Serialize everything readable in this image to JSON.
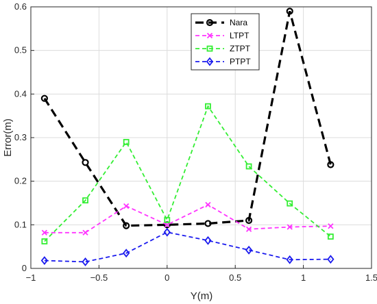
{
  "chart_data": {
    "type": "line",
    "xlabel": "Y(m)",
    "ylabel": "Error(m)",
    "xlim": [
      -1,
      1.5
    ],
    "ylim": [
      0,
      0.6
    ],
    "xticks": [
      -1,
      -0.5,
      0,
      0.5,
      1,
      1.5
    ],
    "xtick_labels": [
      "−1",
      "−0.5",
      "0",
      "0.5",
      "1",
      "1.5"
    ],
    "yticks": [
      0,
      0.1,
      0.2,
      0.3,
      0.4,
      0.5,
      0.6
    ],
    "ytick_labels": [
      "0",
      "0.1",
      "0.2",
      "0.3",
      "0.4",
      "0.5",
      "0.6"
    ],
    "grid": true,
    "legend_position": "top-center",
    "series": [
      {
        "name": "Nara",
        "color": "#000000",
        "marker": "circle",
        "dash": "long-dash",
        "x": [
          -0.9,
          -0.6,
          -0.3,
          0,
          0.3,
          0.6,
          0.9,
          1.2
        ],
        "y": [
          0.39,
          0.243,
          0.098,
          0.1,
          0.103,
          0.11,
          0.59,
          0.238
        ]
      },
      {
        "name": "LTPT",
        "color": "#ff33ff",
        "marker": "x",
        "dash": "dashed",
        "x": [
          -0.9,
          -0.6,
          -0.3,
          0,
          0.3,
          0.6,
          0.9,
          1.2
        ],
        "y": [
          0.082,
          0.082,
          0.143,
          0.1,
          0.146,
          0.09,
          0.095,
          0.097
        ]
      },
      {
        "name": "ZTPT",
        "color": "#33ee33",
        "marker": "square",
        "dash": "dashed",
        "x": [
          -0.9,
          -0.6,
          -0.3,
          0,
          0.3,
          0.6,
          0.9,
          1.2
        ],
        "y": [
          0.062,
          0.156,
          0.29,
          0.111,
          0.372,
          0.234,
          0.149,
          0.073
        ]
      },
      {
        "name": "PTPT",
        "color": "#1a1aee",
        "marker": "diamond",
        "dash": "dashed",
        "x": [
          -0.9,
          -0.6,
          -0.3,
          0,
          0.3,
          0.6,
          0.9,
          1.2
        ],
        "y": [
          0.018,
          0.015,
          0.035,
          0.083,
          0.064,
          0.042,
          0.02,
          0.021
        ]
      }
    ]
  }
}
